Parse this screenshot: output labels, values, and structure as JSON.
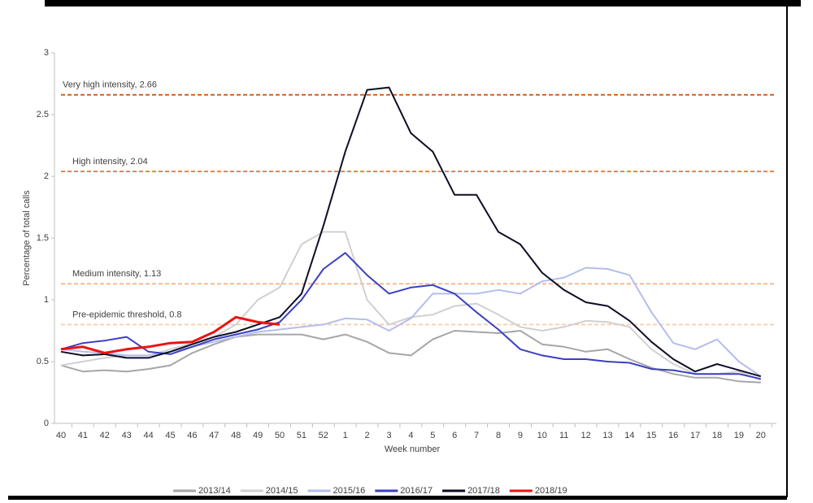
{
  "chart_data": {
    "type": "line",
    "x_label": "Week number",
    "y_label": "Percentage of total calls",
    "categories": [
      "40",
      "41",
      "42",
      "43",
      "44",
      "45",
      "46",
      "47",
      "48",
      "49",
      "50",
      "51",
      "52",
      "1",
      "2",
      "3",
      "4",
      "5",
      "6",
      "7",
      "8",
      "9",
      "10",
      "11",
      "12",
      "13",
      "14",
      "15",
      "16",
      "17",
      "18",
      "19",
      "20"
    ],
    "ylim": [
      0,
      3
    ],
    "yticks": [
      0,
      0.5,
      1,
      1.5,
      2,
      2.5,
      3
    ],
    "thresholds": [
      {
        "label": "Very high intensity, 2.66",
        "value": 2.66,
        "color": "#c55a11"
      },
      {
        "label": "High intensity, 2.04",
        "value": 2.04,
        "color": "#ed7d31"
      },
      {
        "label": "Medium intensity, 1.13",
        "value": 1.13,
        "color": "#f4b183"
      },
      {
        "label": "Pre-epidemic threshold, 0.8",
        "value": 0.8,
        "color": "#f8cbad"
      }
    ],
    "series": [
      {
        "name": "2013/14",
        "color": "#a6a6a6",
        "values": [
          0.47,
          0.42,
          0.43,
          0.42,
          0.44,
          0.47,
          0.57,
          0.64,
          0.7,
          0.72,
          0.72,
          0.72,
          0.68,
          0.72,
          0.66,
          0.57,
          0.55,
          0.68,
          0.75,
          0.74,
          0.73,
          0.75,
          0.64,
          0.62,
          0.58,
          0.6,
          0.52,
          0.45,
          0.4,
          0.37,
          0.37,
          0.34,
          0.33
        ]
      },
      {
        "name": "2014/15",
        "color": "#d0d0d0",
        "values": [
          0.47,
          0.5,
          0.53,
          0.55,
          0.55,
          0.6,
          0.65,
          0.7,
          0.8,
          1.0,
          1.1,
          1.45,
          1.55,
          1.55,
          1.0,
          0.8,
          0.86,
          0.88,
          0.95,
          0.97,
          0.88,
          0.78,
          0.75,
          0.78,
          0.83,
          0.82,
          0.78,
          0.6,
          0.48,
          0.4,
          0.4,
          0.42,
          0.35
        ]
      },
      {
        "name": "2015/16",
        "color": "#b4bdec",
        "values": [
          0.6,
          0.58,
          0.57,
          0.55,
          0.55,
          0.58,
          0.62,
          0.66,
          0.7,
          0.74,
          0.76,
          0.78,
          0.8,
          0.85,
          0.84,
          0.75,
          0.85,
          1.05,
          1.05,
          1.05,
          1.08,
          1.05,
          1.15,
          1.18,
          1.26,
          1.25,
          1.2,
          0.9,
          0.65,
          0.6,
          0.68,
          0.5,
          0.38
        ]
      },
      {
        "name": "2016/17",
        "color": "#3b3fc4",
        "values": [
          0.6,
          0.65,
          0.67,
          0.7,
          0.58,
          0.56,
          0.62,
          0.68,
          0.72,
          0.76,
          0.82,
          1.0,
          1.25,
          1.38,
          1.2,
          1.05,
          1.1,
          1.12,
          1.05,
          0.9,
          0.76,
          0.6,
          0.55,
          0.52,
          0.52,
          0.5,
          0.49,
          0.44,
          0.43,
          0.4,
          0.4,
          0.4,
          0.36
        ]
      },
      {
        "name": "2017/18",
        "color": "#0d0d26",
        "values": [
          0.58,
          0.55,
          0.56,
          0.53,
          0.53,
          0.58,
          0.64,
          0.7,
          0.74,
          0.8,
          0.86,
          1.05,
          1.6,
          2.2,
          2.7,
          2.72,
          2.35,
          2.2,
          1.85,
          1.85,
          1.55,
          1.45,
          1.22,
          1.08,
          0.98,
          0.95,
          0.83,
          0.66,
          0.52,
          0.42,
          0.48,
          0.43,
          0.38
        ]
      },
      {
        "name": "2018/19",
        "color": "#ee1111",
        "values": [
          0.6,
          0.62,
          0.57,
          0.6,
          0.62,
          0.65,
          0.66,
          0.74,
          0.86,
          0.82,
          0.8,
          null,
          null,
          null,
          null,
          null,
          null,
          null,
          null,
          null,
          null,
          null,
          null,
          null,
          null,
          null,
          null,
          null,
          null,
          null,
          null,
          null,
          null
        ]
      }
    ]
  }
}
